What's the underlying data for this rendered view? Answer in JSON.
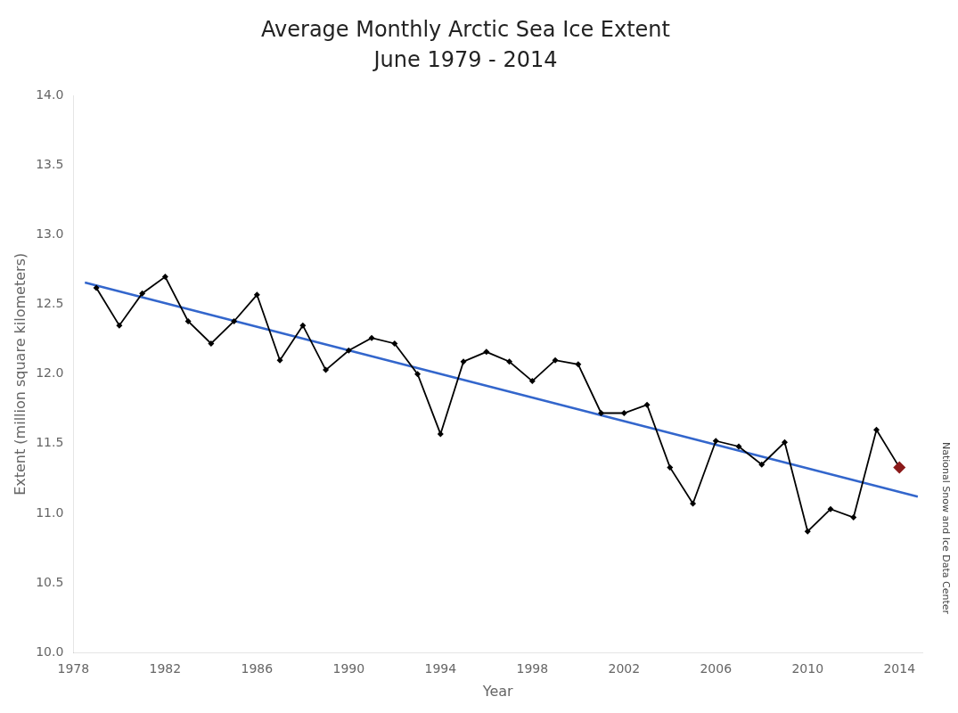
{
  "chart_data": {
    "type": "line",
    "title": "Average Monthly Arctic Sea Ice Extent",
    "subtitle": "June 1979 - 2014",
    "xlabel": "Year",
    "ylabel": "Extent (million square kilometers)",
    "annotations": [
      "National Snow and Ice Data Center"
    ],
    "series": [
      {
        "color": "#3366CC",
        "marker": "none",
        "line_style": "solid",
        "x": [
          1978.5,
          2014.8
        ],
        "values": [
          12.6588,
          11.1196
        ]
      },
      {
        "color": "#000000",
        "marker": "diamond",
        "line_style": "solid",
        "x": [
          1979,
          1980,
          1981,
          1982,
          1983,
          1984,
          1985,
          1986,
          1987,
          1988,
          1989,
          1990,
          1991,
          1992,
          1993,
          1994,
          1995,
          1996,
          1997,
          1998,
          1999,
          2000,
          2001,
          2002,
          2003,
          2004,
          2005,
          2006,
          2007,
          2008,
          2009,
          2010,
          2011,
          2012,
          2013,
          2014
        ],
        "values": [
          12.62,
          12.35,
          12.58,
          12.7,
          12.38,
          12.22,
          12.38,
          12.57,
          12.1,
          12.35,
          12.03,
          12.17,
          12.26,
          12.22,
          12.0,
          11.57,
          12.09,
          12.16,
          12.09,
          11.95,
          12.1,
          12.07,
          11.72,
          11.72,
          11.78,
          11.33,
          11.07,
          11.52,
          11.48,
          11.35,
          11.51,
          10.87,
          11.03,
          10.97,
          11.6,
          11.33
        ],
        "colors": [
          "#000000",
          "#000000",
          "#000000",
          "#000000",
          "#000000",
          "#000000",
          "#000000",
          "#000000",
          "#000000",
          "#000000",
          "#000000",
          "#000000",
          "#000000",
          "#000000",
          "#000000",
          "#000000",
          "#000000",
          "#000000",
          "#000000",
          "#000000",
          "#000000",
          "#000000",
          "#000000",
          "#000000",
          "#000000",
          "#000000",
          "#000000",
          "#000000",
          "#000000",
          "#000000",
          "#000000",
          "#000000",
          "#000000",
          "#000000",
          "#000000",
          "#8B1A1A"
        ]
      }
    ],
    "xlim": [
      1978,
      2015
    ],
    "xticks": [
      1978,
      1982,
      1986,
      1990,
      1994,
      1998,
      2002,
      2006,
      2010,
      2014
    ],
    "ylim": [
      10.0,
      14.0
    ],
    "yticks": [
      {
        "value": 10,
        "label": "10.0"
      },
      10.5,
      {
        "value": 11,
        "label": "11.0"
      },
      11.5,
      {
        "value": 12,
        "label": "12.0"
      },
      12.5,
      {
        "value": 13,
        "label": "13.0"
      },
      13.5,
      {
        "value": 14,
        "label": "14.0"
      }
    ],
    "grid": false
  }
}
